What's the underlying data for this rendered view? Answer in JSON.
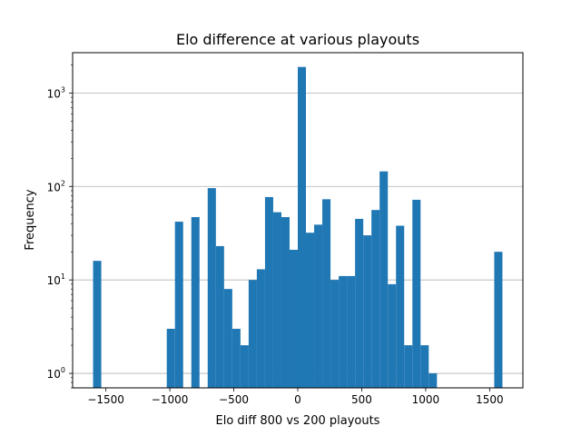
{
  "chart_data": {
    "type": "bar",
    "title": "Elo difference at various playouts",
    "xlabel": "Elo diff 800 vs 200 playouts",
    "ylabel": "Frequency",
    "y_scale": "log",
    "grid": "y-major",
    "bar_color": "#1f77b4",
    "xlim": [
      -1760,
      1760
    ],
    "ylim": [
      0.7,
      2700
    ],
    "x_ticks": [
      {
        "value": -1500,
        "label": "−1500"
      },
      {
        "value": -1000,
        "label": "−1000"
      },
      {
        "value": -500,
        "label": "−500"
      },
      {
        "value": 0,
        "label": "0"
      },
      {
        "value": 500,
        "label": "500"
      },
      {
        "value": 1000,
        "label": "1000"
      },
      {
        "value": 1500,
        "label": "1500"
      }
    ],
    "y_ticks": [
      {
        "value": 1,
        "base": "10",
        "exp": "0"
      },
      {
        "value": 10,
        "base": "10",
        "exp": "1"
      },
      {
        "value": 100,
        "base": "10",
        "exp": "2"
      },
      {
        "value": 1000,
        "base": "10",
        "exp": "3"
      }
    ],
    "bins": [
      {
        "x0": -1600,
        "x1": -1536,
        "count": 16
      },
      {
        "x0": -1024,
        "x1": -960,
        "count": 3
      },
      {
        "x0": -960,
        "x1": -896,
        "count": 42
      },
      {
        "x0": -832,
        "x1": -768,
        "count": 47
      },
      {
        "x0": -704,
        "x1": -640,
        "count": 96
      },
      {
        "x0": -640,
        "x1": -576,
        "count": 23
      },
      {
        "x0": -576,
        "x1": -512,
        "count": 8
      },
      {
        "x0": -512,
        "x1": -448,
        "count": 3
      },
      {
        "x0": -448,
        "x1": -384,
        "count": 2
      },
      {
        "x0": -384,
        "x1": -320,
        "count": 10
      },
      {
        "x0": -320,
        "x1": -256,
        "count": 13
      },
      {
        "x0": -256,
        "x1": -192,
        "count": 77
      },
      {
        "x0": -192,
        "x1": -128,
        "count": 53
      },
      {
        "x0": -128,
        "x1": -64,
        "count": 47
      },
      {
        "x0": -64,
        "x1": 0,
        "count": 21
      },
      {
        "x0": 0,
        "x1": 64,
        "count": 1900
      },
      {
        "x0": 64,
        "x1": 128,
        "count": 32
      },
      {
        "x0": 128,
        "x1": 192,
        "count": 39
      },
      {
        "x0": 192,
        "x1": 256,
        "count": 73
      },
      {
        "x0": 256,
        "x1": 320,
        "count": 10
      },
      {
        "x0": 320,
        "x1": 384,
        "count": 11
      },
      {
        "x0": 384,
        "x1": 448,
        "count": 11
      },
      {
        "x0": 448,
        "x1": 512,
        "count": 45
      },
      {
        "x0": 512,
        "x1": 576,
        "count": 30
      },
      {
        "x0": 576,
        "x1": 640,
        "count": 56
      },
      {
        "x0": 640,
        "x1": 704,
        "count": 145
      },
      {
        "x0": 704,
        "x1": 768,
        "count": 9
      },
      {
        "x0": 768,
        "x1": 832,
        "count": 38
      },
      {
        "x0": 832,
        "x1": 896,
        "count": 2
      },
      {
        "x0": 896,
        "x1": 960,
        "count": 72
      },
      {
        "x0": 960,
        "x1": 1024,
        "count": 2
      },
      {
        "x0": 1024,
        "x1": 1088,
        "count": 1
      },
      {
        "x0": 1536,
        "x1": 1600,
        "count": 20
      }
    ]
  }
}
